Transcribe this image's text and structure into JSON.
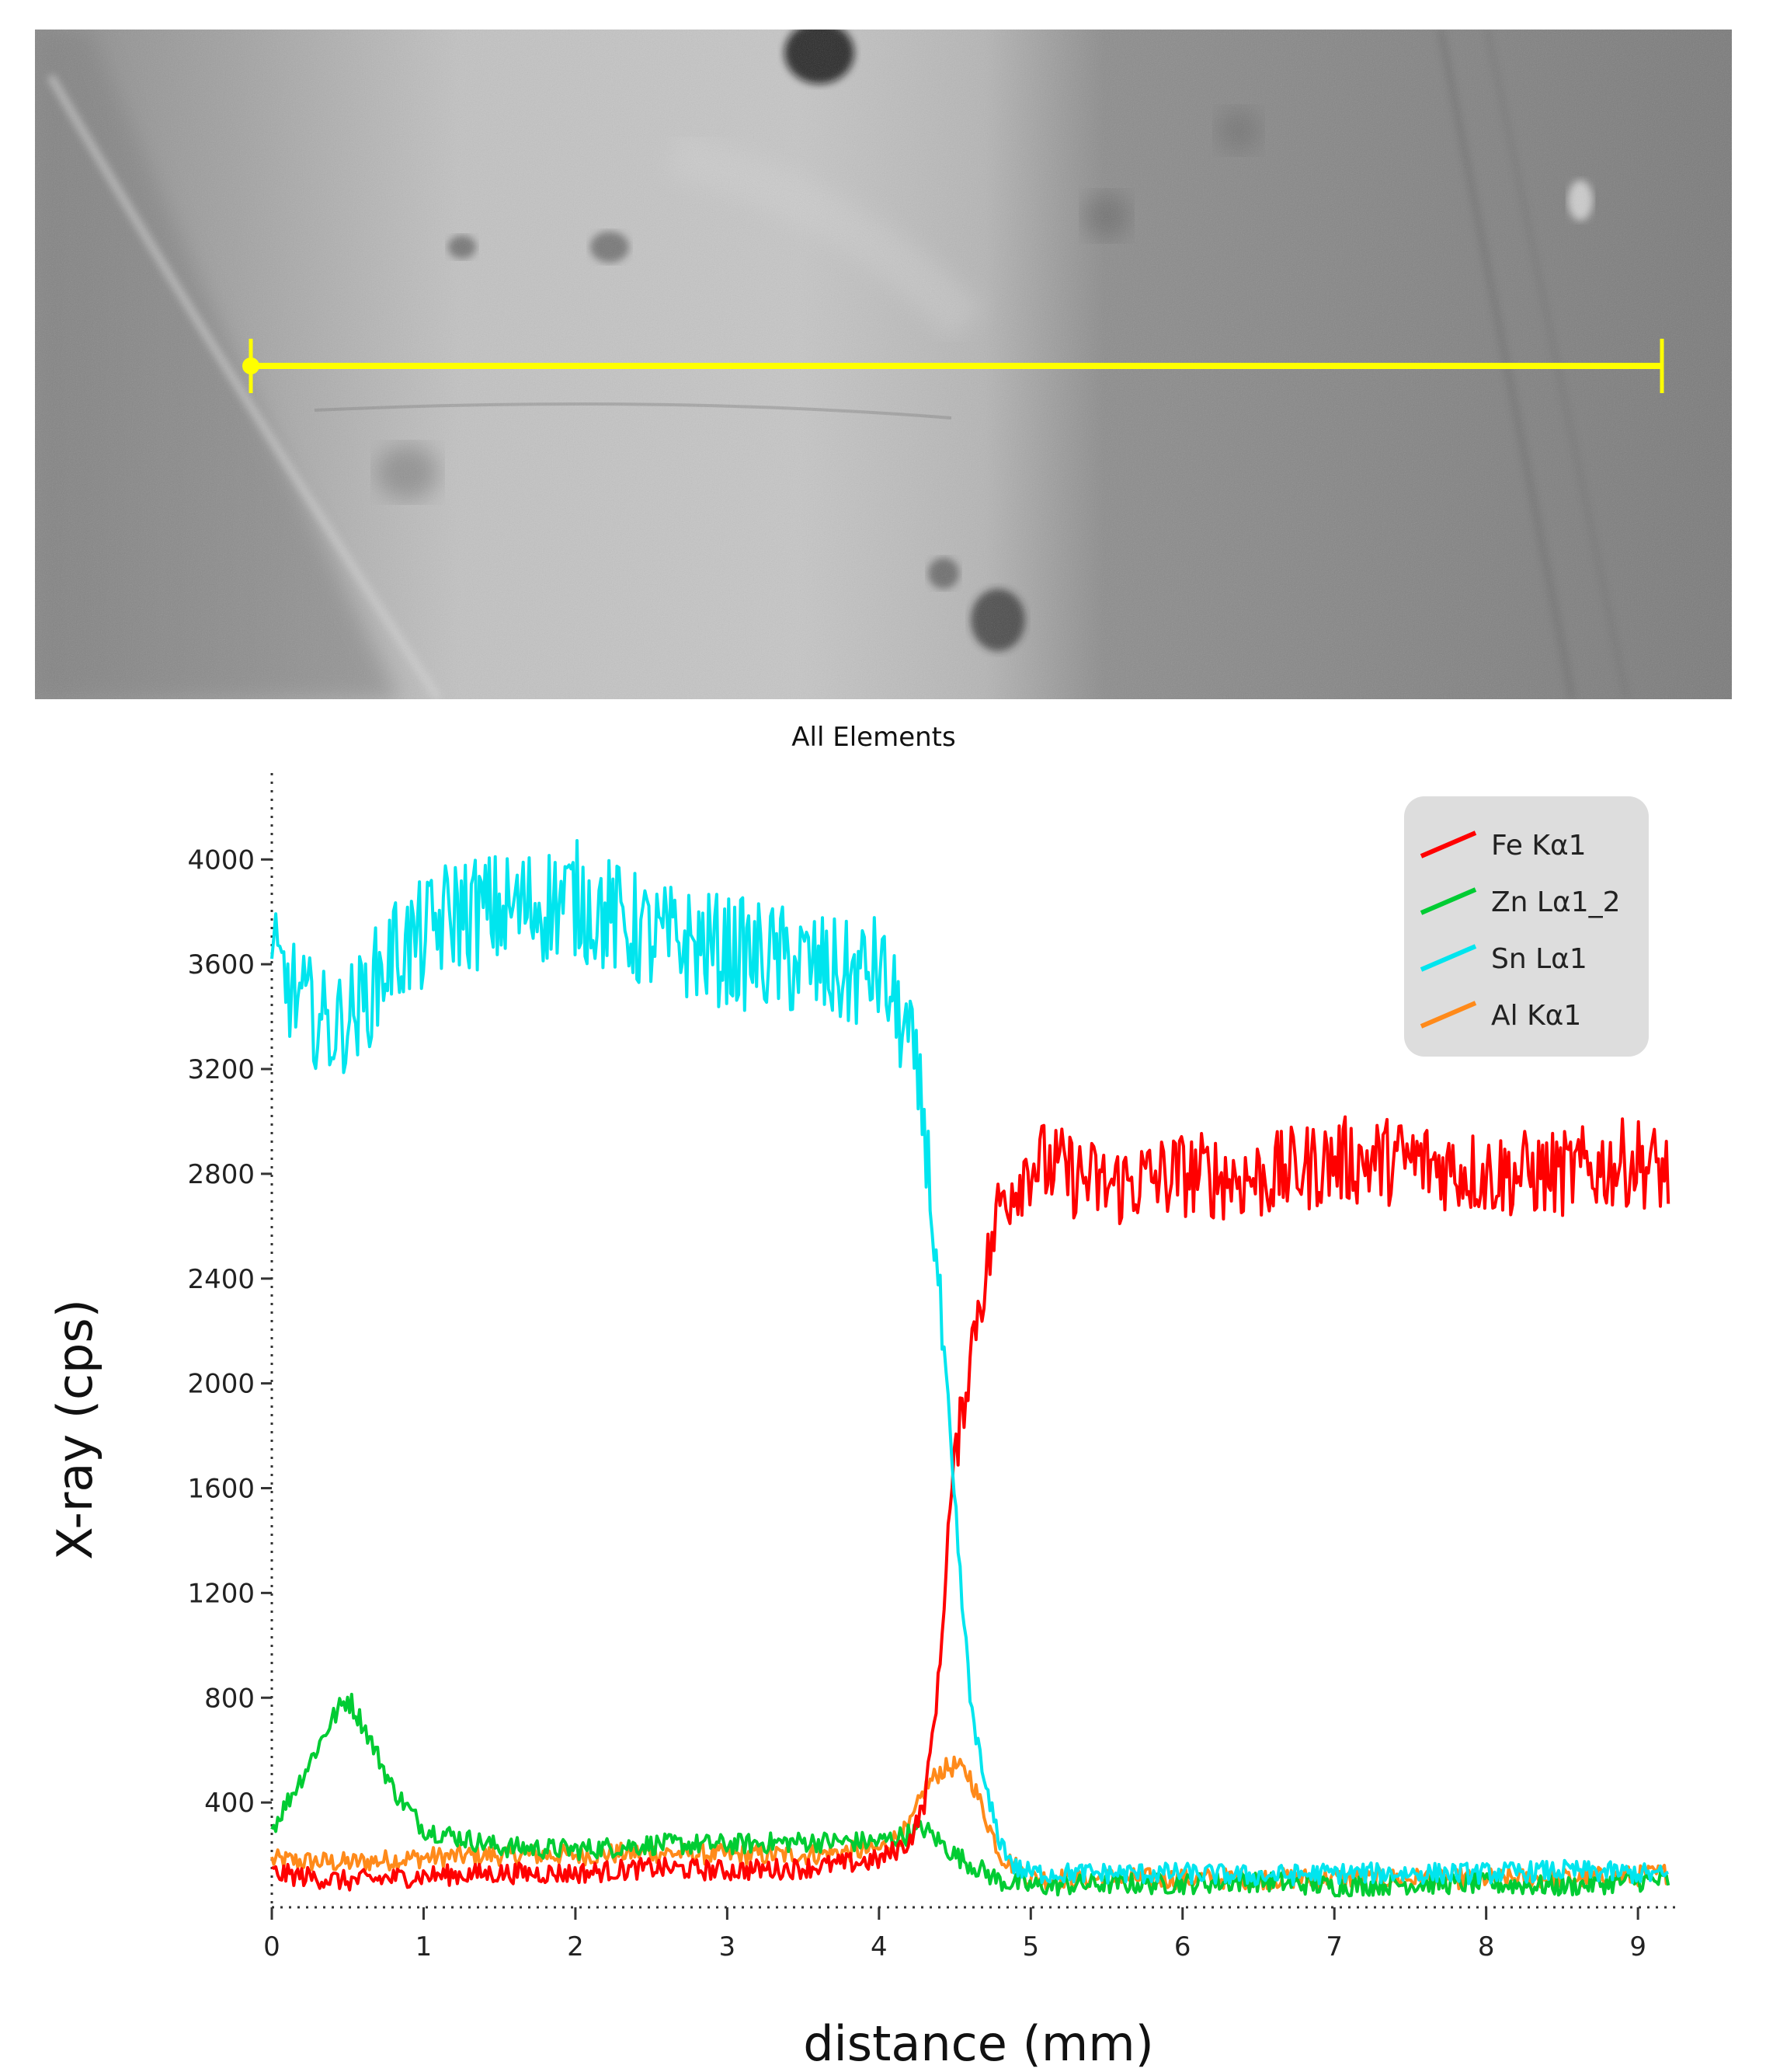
{
  "colors": {
    "fe": "#ff0000",
    "zn": "#00cc33",
    "sn": "#00e5ee",
    "al": "#ff8a1a",
    "scan_line": "#ffff00"
  },
  "chart_data": {
    "type": "line",
    "title": "All Elements",
    "xlabel": "distance (mm)",
    "ylabel": "X-ray (cps)",
    "xlim": [
      0,
      9.25
    ],
    "ylim": [
      0,
      4330
    ],
    "xticks": [
      0,
      1,
      2,
      3,
      4,
      5,
      6,
      7,
      8,
      9
    ],
    "yticks": [
      400,
      800,
      1200,
      1600,
      2000,
      2400,
      2800,
      3200,
      3600,
      4000
    ],
    "legend_position": "top-right",
    "series": [
      {
        "name": "Fe Kα1",
        "color": "#ff0000",
        "x": [
          0,
          0.5,
          1,
          1.5,
          2,
          2.5,
          3,
          3.5,
          4,
          4.2,
          4.3,
          4.4,
          4.45,
          4.5,
          4.55,
          4.6,
          4.65,
          4.7,
          4.75,
          4.8,
          5,
          5.5,
          6,
          6.5,
          7,
          7.5,
          8,
          8.5,
          9,
          9.2
        ],
        "y": [
          130,
          100,
          120,
          130,
          130,
          150,
          140,
          150,
          180,
          250,
          400,
          900,
          1400,
          1700,
          1900,
          2100,
          2300,
          2400,
          2550,
          2700,
          2850,
          2750,
          2800,
          2780,
          2850,
          2850,
          2800,
          2800,
          2850,
          2800
        ]
      },
      {
        "name": "Zn Lα1_2",
        "color": "#00cc33",
        "x": [
          0,
          0.2,
          0.4,
          0.5,
          0.6,
          0.8,
          1,
          1.5,
          2,
          2.5,
          3,
          3.5,
          4,
          4.2,
          4.3,
          4.5,
          4.8,
          5,
          5.5,
          6,
          6.5,
          7,
          7.5,
          8,
          8.5,
          9,
          9.2
        ],
        "y": [
          300,
          500,
          720,
          800,
          700,
          450,
          300,
          230,
          220,
          240,
          240,
          250,
          250,
          280,
          300,
          200,
          100,
          80,
          90,
          90,
          100,
          80,
          90,
          90,
          80,
          100,
          100
        ]
      },
      {
        "name": "Sn Lα1",
        "color": "#00e5ee",
        "x": [
          0,
          0.2,
          0.4,
          0.6,
          0.8,
          1,
          1.2,
          1.5,
          2,
          2.5,
          3,
          3.5,
          3.8,
          4,
          4.2,
          4.3,
          4.4,
          4.5,
          4.6,
          4.7,
          4.8,
          4.9,
          5,
          5.5,
          6,
          6.5,
          7,
          7.5,
          8,
          8.5,
          9,
          9.2
        ],
        "y": [
          3600,
          3450,
          3350,
          3450,
          3650,
          3700,
          3800,
          3800,
          3850,
          3700,
          3650,
          3600,
          3550,
          3580,
          3300,
          3000,
          2300,
          1500,
          800,
          450,
          250,
          150,
          130,
          130,
          130,
          120,
          130,
          130,
          130,
          140,
          130,
          120
        ]
      },
      {
        "name": "Al Kα1",
        "color": "#ff8a1a",
        "x": [
          0,
          0.5,
          1,
          1.5,
          2,
          2.5,
          3,
          3.5,
          4,
          4.2,
          4.3,
          4.4,
          4.5,
          4.6,
          4.7,
          4.8,
          5,
          5.5,
          6,
          6.5,
          7,
          7.5,
          8,
          8.5,
          9,
          9.2
        ],
        "y": [
          180,
          170,
          190,
          200,
          200,
          210,
          200,
          200,
          220,
          300,
          450,
          520,
          540,
          500,
          350,
          200,
          110,
          110,
          110,
          110,
          110,
          110,
          110,
          110,
          120,
          130
        ]
      }
    ]
  }
}
